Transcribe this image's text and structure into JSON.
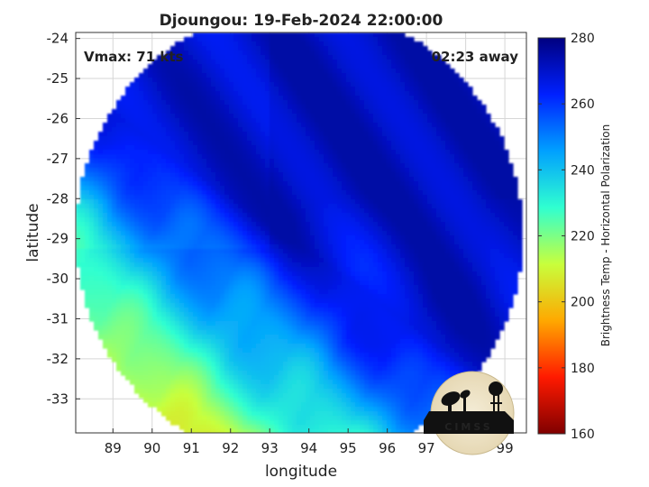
{
  "chart_data": {
    "type": "heatmap",
    "title": "Djoungou: 19-Feb-2024 22:00:00",
    "xlabel": "longitude",
    "ylabel": "latitude",
    "xlim": [
      88.05,
      99.55
    ],
    "ylim": [
      -33.85,
      -23.85
    ],
    "xticks": [
      89,
      90,
      91,
      92,
      93,
      94,
      95,
      96,
      97,
      98,
      99
    ],
    "yticks": [
      -24,
      -25,
      -26,
      -27,
      -28,
      -29,
      -30,
      -31,
      -32,
      -33
    ],
    "grid": true,
    "annotations": {
      "vmax": "Vmax: 71 kts",
      "away": "02:23 away"
    },
    "colorbar": {
      "label": "Brightness Temp - Horizontal Polarization",
      "min": 160,
      "max": 280,
      "ticks": [
        160,
        180,
        200,
        220,
        240,
        260,
        280
      ],
      "colors": [
        "#800000",
        "#ff1a00",
        "#ffa800",
        "#c8ff3c",
        "#30ffd0",
        "#00a0ff",
        "#0020ff",
        "#000080"
      ]
    },
    "swath": {
      "center": [
        93.75,
        -28.9
      ],
      "radius_deg": 5.7,
      "cut_lon": 93.0,
      "values_range_k": [
        205,
        275
      ]
    }
  },
  "logo": {
    "text": "CIMSS"
  }
}
